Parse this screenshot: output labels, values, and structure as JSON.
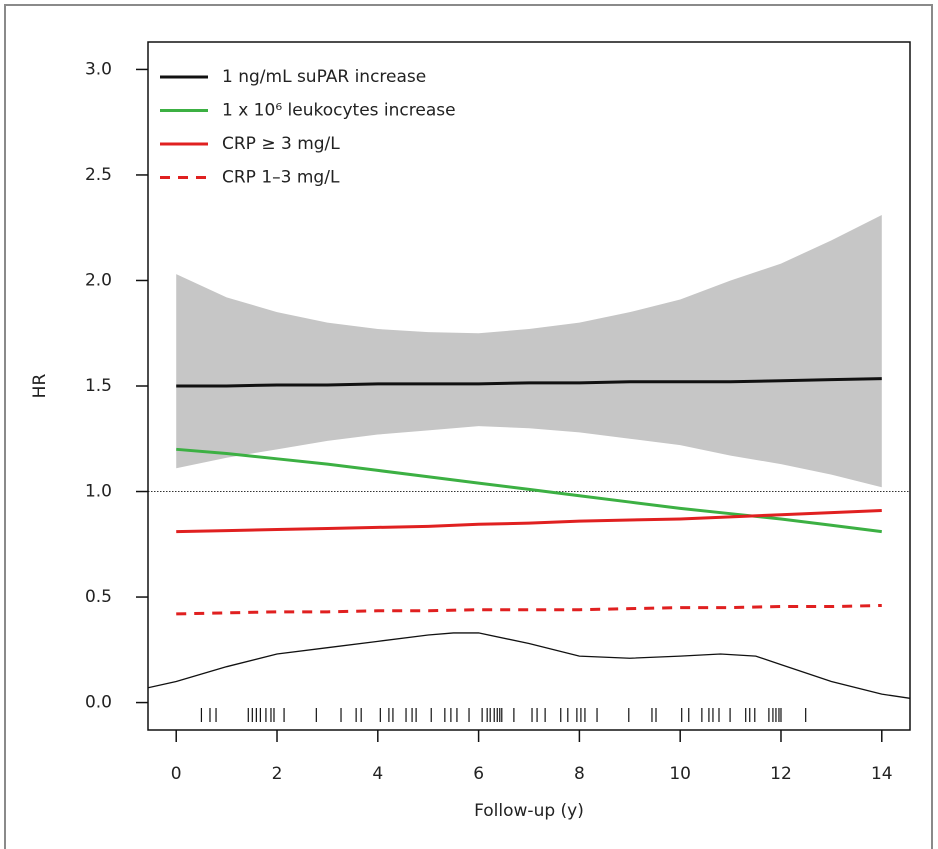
{
  "chart_data": {
    "type": "line",
    "xlabel": "Follow-up (y)",
    "ylabel": "HR",
    "xlim": [
      -0.56,
      14.56
    ],
    "ylim": [
      -0.13,
      3.13
    ],
    "xticks": [
      0,
      2,
      4,
      6,
      8,
      10,
      12,
      14
    ],
    "yticks": [
      {
        "value": 0,
        "label": "0.0"
      },
      0.5,
      {
        "value": 1,
        "label": "1.0"
      },
      1.5,
      {
        "value": 2,
        "label": "2.0"
      },
      2.5,
      {
        "value": 3,
        "label": "3.0"
      }
    ],
    "legend": "top-left",
    "x": [
      0,
      1,
      2,
      3,
      4,
      5,
      6,
      7,
      8,
      9,
      10,
      11,
      12,
      13,
      14
    ],
    "series": [
      {
        "name": "1 ng/mL suPAR increase",
        "color": "#111111",
        "dash": false,
        "values": [
          1.5,
          1.5,
          1.505,
          1.505,
          1.51,
          1.51,
          1.51,
          1.515,
          1.515,
          1.52,
          1.52,
          1.52,
          1.525,
          1.53,
          1.535
        ]
      },
      {
        "name": "1 x 10⁶ leukocytes increase",
        "color": "#3cb043",
        "dash": false,
        "values": [
          1.2,
          1.18,
          1.155,
          1.13,
          1.1,
          1.07,
          1.04,
          1.01,
          0.98,
          0.95,
          0.92,
          0.895,
          0.87,
          0.84,
          0.81
        ]
      },
      {
        "name": "CRP ≥ 3 mg/L",
        "color": "#e02020",
        "dash": false,
        "values": [
          0.81,
          0.815,
          0.82,
          0.825,
          0.83,
          0.835,
          0.845,
          0.85,
          0.86,
          0.865,
          0.87,
          0.88,
          0.89,
          0.9,
          0.91
        ]
      },
      {
        "name": "CRP 1–3 mg/L",
        "color": "#e02020",
        "dash": true,
        "values": [
          0.42,
          0.425,
          0.43,
          0.43,
          0.435,
          0.435,
          0.44,
          0.44,
          0.44,
          0.445,
          0.45,
          0.45,
          0.455,
          0.455,
          0.46
        ]
      }
    ],
    "band": {
      "color": "#c6c6c6",
      "x": [
        0,
        1,
        2,
        3,
        4,
        5,
        6,
        7,
        8,
        9,
        10,
        11,
        12,
        13,
        14
      ],
      "upper": [
        2.03,
        1.92,
        1.85,
        1.8,
        1.77,
        1.755,
        1.75,
        1.77,
        1.8,
        1.85,
        1.91,
        2.0,
        2.08,
        2.19,
        2.31
      ],
      "lower": [
        1.11,
        1.16,
        1.2,
        1.24,
        1.27,
        1.29,
        1.31,
        1.3,
        1.28,
        1.25,
        1.22,
        1.17,
        1.13,
        1.08,
        1.02
      ]
    },
    "reference_line": 1,
    "density": {
      "color": "#111111",
      "x": [
        -0.56,
        0,
        1,
        2,
        3,
        4,
        5,
        5.5,
        6,
        7,
        8,
        9,
        10,
        10.8,
        11.5,
        12,
        13,
        14,
        14.56
      ],
      "values": [
        0.07,
        0.1,
        0.17,
        0.23,
        0.26,
        0.29,
        0.32,
        0.33,
        0.33,
        0.28,
        0.22,
        0.21,
        0.22,
        0.23,
        0.22,
        0.18,
        0.1,
        0.04,
        0.02
      ]
    },
    "rug": [
      0.5,
      0.67,
      0.79,
      1.43,
      1.51,
      1.59,
      1.67,
      1.78,
      1.88,
      1.94,
      2.14,
      2.78,
      3.27,
      3.57,
      3.67,
      4.05,
      4.22,
      4.3,
      4.56,
      4.68,
      4.76,
      5.06,
      5.33,
      5.45,
      5.57,
      5.81,
      6.07,
      6.17,
      6.23,
      6.31,
      6.37,
      6.42,
      6.46,
      6.7,
      7.06,
      7.16,
      7.32,
      7.63,
      7.77,
      7.95,
      8.03,
      8.11,
      8.35,
      8.98,
      9.44,
      9.52,
      10.03,
      10.17,
      10.43,
      10.57,
      10.65,
      10.77,
      10.99,
      11.3,
      11.38,
      11.48,
      11.76,
      11.84,
      11.9,
      11.96,
      12.0,
      12.49
    ]
  }
}
